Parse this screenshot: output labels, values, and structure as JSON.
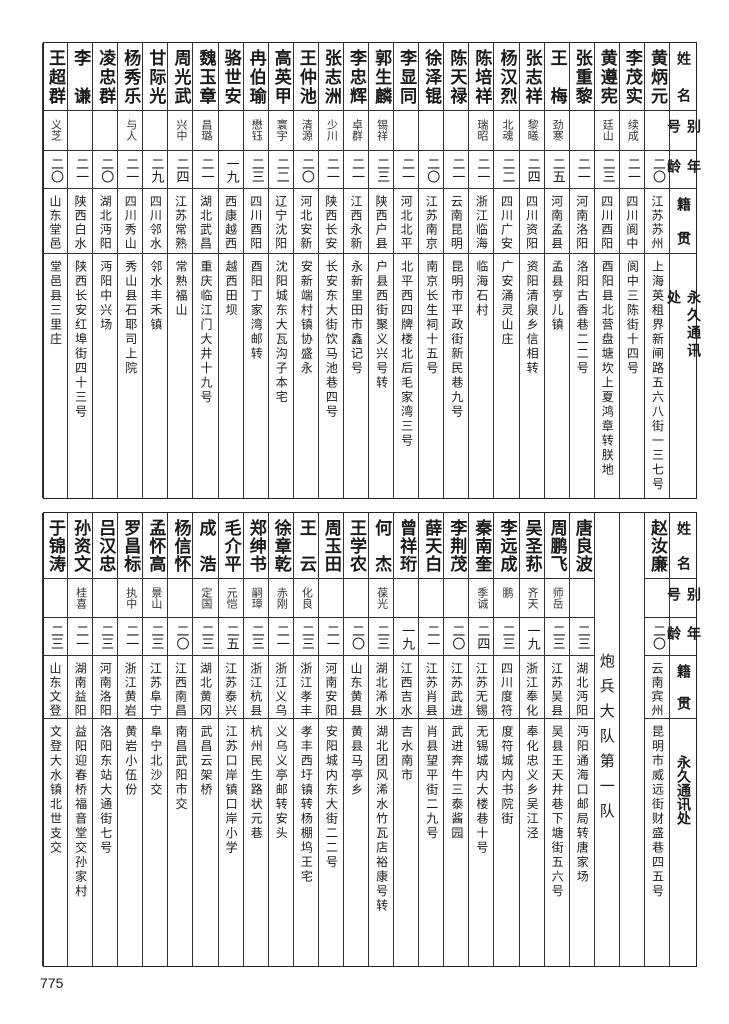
{
  "header_labels": {
    "name": "姓名",
    "alias": "别号",
    "age": "年龄",
    "native_place": "籍贯",
    "address": "永久通讯处"
  },
  "tables": [
    {
      "rows": [
        {
          "name": "黄炳元",
          "alias": "",
          "age": "二〇",
          "native_place": "江苏苏州",
          "address": "上海英租界新闸路五六八街一三七号"
        },
        {
          "name": "李茂实",
          "alias": "续成",
          "age": "二一",
          "native_place": "四川阆中",
          "address": "阆中三陈街十四号"
        },
        {
          "name": "黄遵宪",
          "alias": "廷山",
          "age": "二三",
          "native_place": "四川酉阳",
          "address": "酉阳县北营盘塘坎上夏鸿章转朕地"
        },
        {
          "name": "张重黎",
          "alias": "",
          "age": "二一",
          "native_place": "河南洛阳",
          "address": "洛阳古香巷二二号"
        },
        {
          "name": "王梅",
          "alias": "劲寒",
          "age": "二五",
          "native_place": "河南孟县",
          "address": "孟县亨儿镇"
        },
        {
          "name": "张志祥",
          "alias": "黎曦",
          "age": "二四",
          "native_place": "四川资阳",
          "address": "资阳清泉乡信相转"
        },
        {
          "name": "杨汉烈",
          "alias": "北魂",
          "age": "二二",
          "native_place": "四川广安",
          "address": "广安涌灵山庄"
        },
        {
          "name": "陈培祥",
          "alias": "瑞昭",
          "age": "二一",
          "native_place": "浙江临海",
          "address": "临海石村"
        },
        {
          "name": "陈天禄",
          "alias": "",
          "age": "二一",
          "native_place": "云南昆明",
          "address": "昆明市平政街新民巷九号"
        },
        {
          "name": "徐泽锟",
          "alias": "",
          "age": "二〇",
          "native_place": "江苏南京",
          "address": "南京长生祠十五号"
        },
        {
          "name": "李显同",
          "alias": "",
          "age": "二一",
          "native_place": "河北北平",
          "address": "北平西四牌楼北后毛家湾三号"
        },
        {
          "name": "郭生麟",
          "alias": "锡祥",
          "age": "二三",
          "native_place": "陕西户县",
          "address": "户县西街聚义兴号转"
        },
        {
          "name": "李忠辉",
          "alias": "卓群",
          "age": "二一",
          "native_place": "江西永新",
          "address": "永新里田市鑫记号"
        },
        {
          "name": "张志洲",
          "alias": "少川",
          "age": "二一",
          "native_place": "陕西长安",
          "address": "长安东大街饮马池巷四号"
        },
        {
          "name": "王仲池",
          "alias": "清源",
          "age": "二〇",
          "native_place": "河北安新",
          "address": "安新端村镇协盛永"
        },
        {
          "name": "高英甲",
          "alias": "寰宇",
          "age": "二二",
          "native_place": "辽宁沈阳",
          "address": "沈阳城东大瓦沟子本宅"
        },
        {
          "name": "冉伯瑜",
          "alias": "懋钰",
          "age": "二三",
          "native_place": "四川酉阳",
          "address": "酉阳丁家湾邮转"
        },
        {
          "name": "骆世安",
          "alias": "",
          "age": "一九",
          "native_place": "西康越西",
          "address": "越西田坝"
        },
        {
          "name": "魏玉章",
          "alias": "昌璐",
          "age": "二一",
          "native_place": "湖北武昌",
          "address": "重庆临江门大井十九号"
        },
        {
          "name": "周光武",
          "alias": "兴中",
          "age": "二四",
          "native_place": "江苏常熟",
          "address": "常熟福山"
        },
        {
          "name": "甘际光",
          "alias": "",
          "age": "二九",
          "native_place": "四川邻水",
          "address": "邻水丰禾镇"
        },
        {
          "name": "杨秀乐",
          "alias": "与人",
          "age": "二一",
          "native_place": "四川秀山",
          "address": "秀山县石耶司上院"
        },
        {
          "name": "凌忠群",
          "alias": "",
          "age": "二〇",
          "native_place": "湖北沔阳",
          "address": "沔阳中兴场"
        },
        {
          "name": "李谦",
          "alias": "",
          "age": "二一",
          "native_place": "陕西白水",
          "address": "陕西长安红埠街四十三号"
        },
        {
          "name": "王超群",
          "alias": "义芝",
          "age": "二〇",
          "native_place": "山东堂邑",
          "address": "堂邑县三里庄"
        }
      ]
    },
    {
      "section_label": "炮兵大队第一队",
      "rows": [
        {
          "name": "赵汝廉",
          "alias": "",
          "age": "二〇",
          "native_place": "云南宾州",
          "address": "昆明市威远街财盛巷四五号"
        },
        {
          "name": "唐良波",
          "alias": "",
          "age": "二三",
          "native_place": "湖北沔阳",
          "address": "沔阳通海口邮局转唐家场"
        },
        {
          "name": "周鹏飞",
          "alias": "师岳",
          "age": "二三",
          "native_place": "江苏吴县",
          "address": "吴县王天井巷下塘街五六号"
        },
        {
          "name": "吴圣荪",
          "alias": "齐天",
          "age": "一九",
          "native_place": "浙江奉化",
          "address": "奉化忠义乡吴江泾"
        },
        {
          "name": "李远成",
          "alias": "鹏",
          "age": "二三",
          "native_place": "四川度符",
          "address": "度符城内书院街"
        },
        {
          "name": "秦南奎",
          "alias": "季诚",
          "age": "二四",
          "native_place": "江苏无锡",
          "address": "无锡城内大楼巷十号"
        },
        {
          "name": "李荆茂",
          "alias": "",
          "age": "二〇",
          "native_place": "江苏武进",
          "address": "武进奔牛三泰酱园"
        },
        {
          "name": "薛天白",
          "alias": "",
          "age": "二一",
          "native_place": "江苏肖县",
          "address": "肖县望平街二九号"
        },
        {
          "name": "曾祥珩",
          "alias": "",
          "age": "一九",
          "native_place": "江西吉水",
          "address": "吉水南市"
        },
        {
          "name": "何杰",
          "alias": "葆光",
          "age": "二三",
          "native_place": "湖北浠水",
          "address": "湖北团风浠水竹瓦店裕康号转"
        },
        {
          "name": "王学农",
          "alias": "",
          "age": "二〇",
          "native_place": "山东黄县",
          "address": "黄县马亭乡"
        },
        {
          "name": "周玉田",
          "alias": "",
          "age": "二一",
          "native_place": "河南安阳",
          "address": "安阳城内东大街二二号"
        },
        {
          "name": "王云",
          "alias": "化良",
          "age": "二三",
          "native_place": "浙江孝丰",
          "address": "孝丰西圩镇转杨棚坞王宅"
        },
        {
          "name": "徐章乾",
          "alias": "赤刚",
          "age": "二一",
          "native_place": "浙江义乌",
          "address": "义乌义亭邮转安头"
        },
        {
          "name": "郑绅书",
          "alias": "嗣璋",
          "age": "二三",
          "native_place": "浙江杭县",
          "address": "杭州民生路状元巷"
        },
        {
          "name": "毛介平",
          "alias": "元恺",
          "age": "二五",
          "native_place": "江苏泰兴",
          "address": "江苏口岸镇口岸小学"
        },
        {
          "name": "成浩",
          "alias": "定国",
          "age": "二三",
          "native_place": "湖北黄冈",
          "address": "武昌云架桥"
        },
        {
          "name": "杨信怀",
          "alias": "",
          "age": "二〇",
          "native_place": "江西南昌",
          "address": "南昌武阳市交"
        },
        {
          "name": "孟怀高",
          "alias": "景山",
          "age": "二三",
          "native_place": "江苏阜宁",
          "address": "阜宁北沙交"
        },
        {
          "name": "罗昌标",
          "alias": "执中",
          "age": "二一",
          "native_place": "浙江黄岩",
          "address": "黄岩小伍份"
        },
        {
          "name": "吕汉忠",
          "alias": "",
          "age": "二三",
          "native_place": "河南洛阳",
          "address": "洛阳东站大通街七号"
        },
        {
          "name": "孙资文",
          "alias": "桂喜",
          "age": "二一",
          "native_place": "湖南益阳",
          "address": "益阳迎春桥福音堂交孙家村"
        },
        {
          "name": "于锦涛",
          "alias": "",
          "age": "二三",
          "native_place": "山东文登",
          "address": "文登大水镇北世支交"
        }
      ]
    }
  ],
  "page_number": "775"
}
